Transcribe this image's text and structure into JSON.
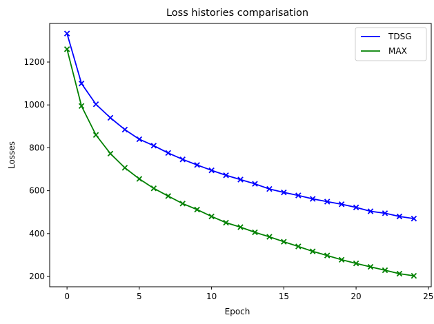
{
  "chart_data": {
    "type": "line",
    "title": "Loss histories comparisation",
    "xlabel": "Epoch",
    "ylabel": "Losses",
    "xlim": [
      -1.2,
      25.2
    ],
    "ylim": [
      152,
      1380
    ],
    "xticks": [
      0,
      5,
      10,
      15,
      20,
      25
    ],
    "yticks": [
      200,
      400,
      600,
      800,
      1000,
      1200
    ],
    "grid": false,
    "legend": "top-right",
    "marker": "x",
    "x": [
      0,
      1,
      2,
      3,
      4,
      5,
      6,
      7,
      8,
      9,
      10,
      11,
      12,
      13,
      14,
      15,
      16,
      17,
      18,
      19,
      20,
      21,
      22,
      23,
      24
    ],
    "series": [
      {
        "name": "TDSG",
        "color": "#0000ff",
        "values": [
          1333,
          1100,
          1003,
          940,
          885,
          840,
          810,
          776,
          746,
          720,
          695,
          672,
          652,
          632,
          608,
          592,
          578,
          562,
          549,
          537,
          522,
          504,
          495,
          480,
          470
        ]
      },
      {
        "name": "MAX",
        "color": "#008000",
        "values": [
          1260,
          995,
          860,
          773,
          707,
          655,
          611,
          575,
          540,
          512,
          480,
          451,
          430,
          406,
          385,
          362,
          340,
          317,
          298,
          278,
          261,
          245,
          229,
          213,
          203
        ]
      }
    ]
  }
}
